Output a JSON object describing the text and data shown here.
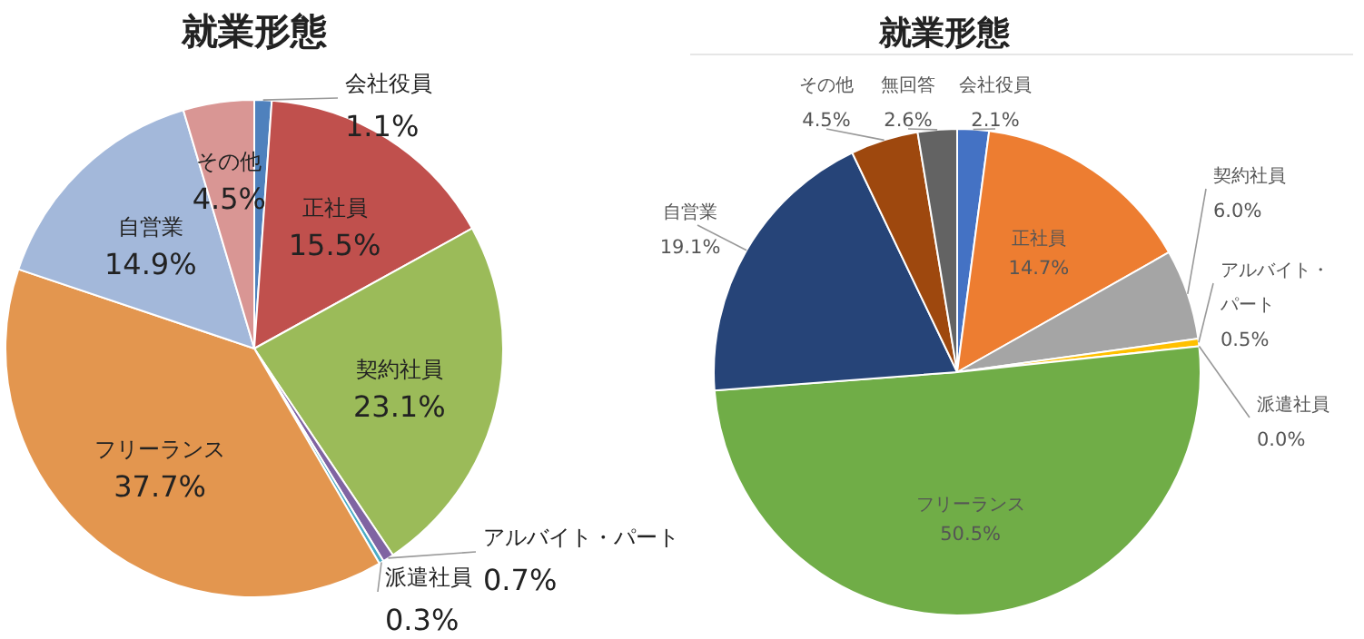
{
  "chart_data": [
    {
      "type": "pie",
      "title": "就業形態",
      "categories": [
        "会社役員",
        "正社員",
        "契約社員",
        "アルバイト・パート",
        "派遣社員",
        "フリーランス",
        "自営業",
        "その他"
      ],
      "values": [
        1.1,
        15.5,
        23.1,
        0.7,
        0.3,
        37.7,
        14.9,
        4.5
      ],
      "value_labels": [
        "1.1%",
        "15.5%",
        "23.1%",
        "0.7%",
        "0.3%",
        "37.7%",
        "14.9%",
        "4.5%"
      ],
      "colors": [
        "#4f81bd",
        "#c0504d",
        "#9bbb59",
        "#8064a2",
        "#4bacc6",
        "#e3964f",
        "#a3b8da",
        "#d99694"
      ]
    },
    {
      "type": "pie",
      "title": "就業形態",
      "categories": [
        "会社役員",
        "正社員",
        "契約社員",
        "アルバイト・パート",
        "派遣社員",
        "フリーランス",
        "自営業",
        "その他",
        "無回答"
      ],
      "values": [
        2.1,
        14.7,
        6.0,
        0.5,
        0.0,
        50.5,
        19.1,
        4.5,
        2.6
      ],
      "value_labels": [
        "2.1%",
        "14.7%",
        "6.0%",
        "0.5%",
        "0.0%",
        "50.5%",
        "19.1%",
        "4.5%",
        "2.6%"
      ],
      "colors": [
        "#4472c4",
        "#ed7d31",
        "#a5a5a5",
        "#ffc000",
        "#5b9bd5",
        "#70ad47",
        "#264478",
        "#9e480e",
        "#636363"
      ]
    }
  ]
}
